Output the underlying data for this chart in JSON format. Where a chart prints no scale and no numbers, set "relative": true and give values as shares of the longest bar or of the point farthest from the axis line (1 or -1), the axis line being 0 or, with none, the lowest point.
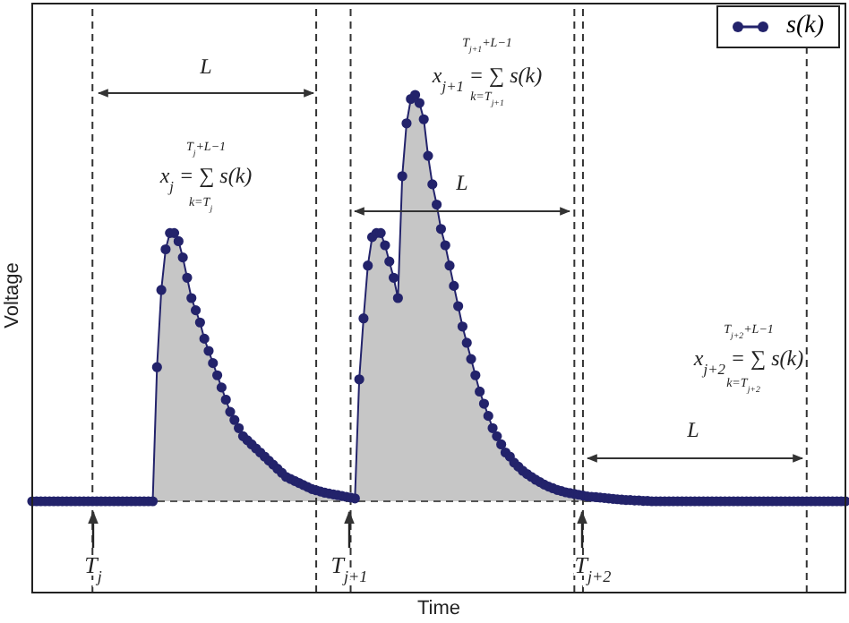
{
  "chart_data": {
    "type": "area",
    "relative": true,
    "xlabel": "Time",
    "ylabel": "Voltage",
    "legend": "top right",
    "marker": "circle",
    "categories": [
      null,
      null,
      null,
      null,
      null,
      null,
      null,
      null,
      null,
      null,
      null,
      null,
      null,
      null,
      null,
      null,
      null,
      null,
      null,
      null,
      null,
      null,
      null,
      null,
      null,
      null,
      null,
      null,
      null,
      null,
      null,
      null,
      null,
      null,
      null,
      null,
      null,
      null,
      null,
      null,
      null,
      null,
      null,
      null,
      null,
      null,
      null,
      null,
      null,
      null,
      null,
      null,
      null,
      null,
      null,
      null,
      null,
      null,
      null,
      null,
      null,
      null,
      null,
      null,
      null,
      null,
      null,
      null,
      null,
      null,
      null,
      null,
      null,
      null,
      null,
      null,
      null,
      null,
      null,
      null,
      null,
      null,
      null,
      null,
      null,
      null,
      null,
      null,
      null,
      null,
      null,
      null,
      null,
      null,
      null,
      null,
      null,
      null,
      null,
      null,
      null,
      null,
      null,
      null,
      null,
      null,
      null,
      null,
      null,
      null,
      null,
      null,
      null,
      null,
      null,
      null,
      null,
      null,
      null,
      null,
      null,
      null,
      null,
      null,
      null,
      null,
      null,
      null,
      null,
      null,
      null,
      null,
      null,
      null,
      null,
      null,
      null,
      null,
      null,
      null,
      null,
      null,
      null,
      null,
      null,
      null,
      null,
      null,
      null,
      null,
      null,
      null,
      null,
      null,
      null,
      null,
      null,
      null,
      null,
      null,
      null,
      null,
      null,
      null,
      null,
      null,
      null,
      null,
      null,
      null,
      null,
      null,
      null,
      null,
      null,
      null,
      null,
      null,
      null,
      null,
      null,
      null,
      null,
      null,
      null,
      null,
      null,
      null,
      null,
      null
    ],
    "series": [
      {
        "name": "s(k)",
        "color": "#23236b",
        "values": [
          0,
          0,
          0,
          0,
          0,
          0,
          0,
          0,
          0,
          0,
          0,
          0,
          0,
          0,
          0,
          0,
          0,
          0,
          0,
          0,
          0,
          0,
          0,
          0,
          0,
          0,
          0,
          0,
          0,
          0.33,
          0.52,
          0.62,
          0.66,
          0.66,
          0.64,
          0.6,
          0.55,
          0.5,
          0.47,
          0.44,
          0.4,
          0.37,
          0.34,
          0.31,
          0.28,
          0.25,
          0.22,
          0.2,
          0.18,
          0.16,
          0.15,
          0.14,
          0.13,
          0.12,
          0.11,
          0.1,
          0.09,
          0.08,
          0.07,
          0.06,
          0.055,
          0.05,
          0.045,
          0.04,
          0.035,
          0.03,
          0.027,
          0.024,
          0.021,
          0.019,
          0.017,
          0.015,
          0.013,
          0.011,
          0.009,
          0.007,
          0.3,
          0.45,
          0.58,
          0.65,
          0.66,
          0.66,
          0.63,
          0.59,
          0.55,
          0.5,
          0.8,
          0.93,
          0.99,
          1,
          0.98,
          0.94,
          0.85,
          0.78,
          0.73,
          0.67,
          0.63,
          0.58,
          0.53,
          0.48,
          0.43,
          0.39,
          0.35,
          0.31,
          0.27,
          0.24,
          0.21,
          0.18,
          0.16,
          0.14,
          0.12,
          0.11,
          0.095,
          0.085,
          0.075,
          0.067,
          0.06,
          0.053,
          0.047,
          0.041,
          0.036,
          0.032,
          0.028,
          0.025,
          0.022,
          0.02,
          0.018,
          0.016,
          0.014,
          0.012,
          0.011,
          0.01,
          0.009,
          0.008,
          0.007,
          0.006,
          0.005,
          0.004,
          0.003,
          0.003,
          0.002,
          0.002,
          0.001,
          0.001,
          0,
          0,
          0,
          0,
          0,
          0,
          0,
          0,
          0,
          0,
          0,
          0,
          0,
          0,
          0,
          0,
          0,
          0,
          0,
          0,
          0,
          0,
          0,
          0,
          0,
          0,
          0,
          0,
          0,
          0,
          0,
          0,
          0,
          0,
          0,
          0,
          0,
          0,
          0,
          0,
          0,
          0,
          0,
          0,
          0,
          0
        ]
      }
    ],
    "ref_lines": [
      {
        "axis": "y",
        "value": 0,
        "line_style": "dashed"
      }
    ],
    "annotations": [
      "L",
      "x$_{j}$ = ∑ s(k)",
      "T$_{j}$+L−1",
      "k=T$_{j}$",
      "L",
      "x$_{j+1}$ = ∑ s(k)",
      "T$_{j+1}$+L−1",
      "k=T$_{j+1}$",
      "x$_{j+2}$ = ∑ s(k)",
      "T$_{j+2}$+L−1",
      "k=T$_{j+2}$",
      "L",
      "T$_{j}$",
      "T$_{j+1}$",
      "T$_{j+2}$"
    ]
  }
}
